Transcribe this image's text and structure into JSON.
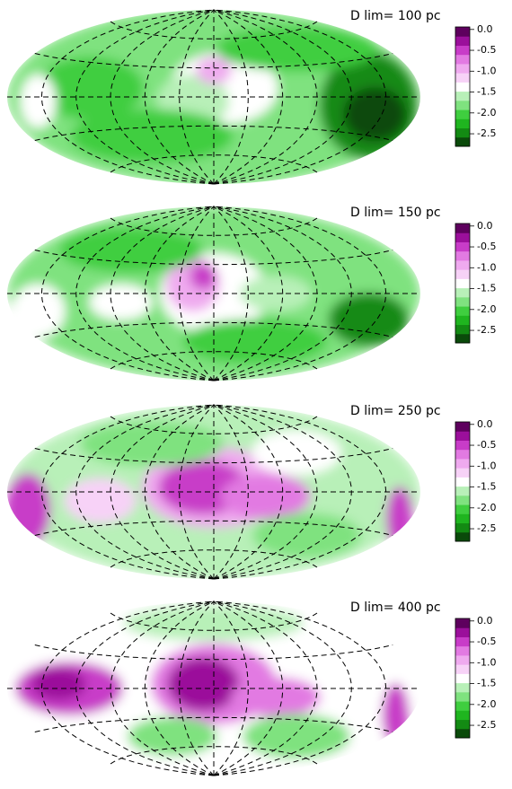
{
  "chart_data": [
    {
      "type": "map",
      "title": "D lim= 100 pc",
      "colorbar_lim": [
        -2.8,
        0.06
      ],
      "colorbar_ticks": [
        {
          "value": 0,
          "label": "0.0"
        },
        -0.5,
        {
          "value": -1,
          "label": "-1.0"
        },
        -1.5,
        {
          "value": -2,
          "label": "-2.0"
        },
        -2.5
      ],
      "colorbar_colors": [
        "#0a4a0a",
        "#138a13",
        "#1fb51f",
        "#3fce3f",
        "#7fe27f",
        "#b8f0b8",
        "#ffffff",
        "#f7d2f7",
        "#efaaef",
        "#e27ae2",
        "#c83cc8",
        "#9b0f9b",
        "#5e005e"
      ]
    },
    {
      "type": "map",
      "title": "D lim= 150 pc",
      "colorbar_lim": [
        -2.8,
        0.06
      ],
      "colorbar_ticks": [
        {
          "value": 0,
          "label": "0.0"
        },
        -0.5,
        {
          "value": -1,
          "label": "-1.0"
        },
        -1.5,
        {
          "value": -2,
          "label": "-2.0"
        },
        -2.5
      ],
      "colorbar_colors": [
        "#0a4a0a",
        "#138a13",
        "#1fb51f",
        "#3fce3f",
        "#7fe27f",
        "#b8f0b8",
        "#ffffff",
        "#f7d2f7",
        "#efaaef",
        "#e27ae2",
        "#c83cc8",
        "#9b0f9b",
        "#5e005e"
      ]
    },
    {
      "type": "map",
      "title": "D lim= 250 pc",
      "colorbar_lim": [
        -2.8,
        0.06
      ],
      "colorbar_ticks": [
        {
          "value": 0,
          "label": "0.0"
        },
        -0.5,
        {
          "value": -1,
          "label": "-1.0"
        },
        -1.5,
        {
          "value": -2,
          "label": "-2.0"
        },
        -2.5
      ],
      "colorbar_colors": [
        "#0a4a0a",
        "#138a13",
        "#1fb51f",
        "#3fce3f",
        "#7fe27f",
        "#b8f0b8",
        "#ffffff",
        "#f7d2f7",
        "#efaaef",
        "#e27ae2",
        "#c83cc8",
        "#9b0f9b",
        "#5e005e"
      ]
    },
    {
      "type": "map",
      "title": "D lim= 400 pc",
      "colorbar_lim": [
        -2.8,
        0.06
      ],
      "colorbar_ticks": [
        {
          "value": 0,
          "label": "0.0"
        },
        -0.5,
        {
          "value": -1,
          "label": "-1.0"
        },
        -1.5,
        {
          "value": -2,
          "label": "-2.0"
        },
        -2.5
      ],
      "colorbar_colors": [
        "#0a4a0a",
        "#138a13",
        "#1fb51f",
        "#3fce3f",
        "#7fe27f",
        "#b8f0b8",
        "#ffffff",
        "#f7d2f7",
        "#efaaef",
        "#e27ae2",
        "#c83cc8",
        "#9b0f9b",
        "#5e005e"
      ]
    }
  ]
}
